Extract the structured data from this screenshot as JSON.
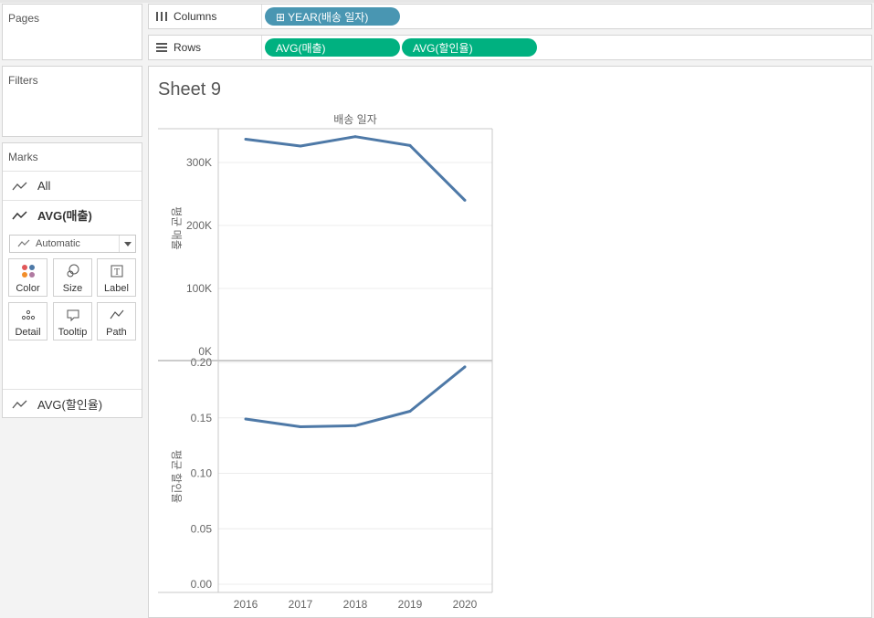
{
  "pages_pane": {
    "title": "Pages"
  },
  "filters_pane": {
    "title": "Filters"
  },
  "marks_pane": {
    "title": "Marks",
    "cards": [
      {
        "label": "All",
        "icon": "line-mark-icon",
        "bold": false
      },
      {
        "label": "AVG(매출)",
        "icon": "line-mark-icon",
        "bold": true
      },
      {
        "label": "AVG(할인율)",
        "icon": "line-mark-icon",
        "bold": false
      }
    ],
    "mark_type": "Automatic",
    "buttons": [
      {
        "label": "Color",
        "icon": "color-dots-icon"
      },
      {
        "label": "Size",
        "icon": "size-circles-icon"
      },
      {
        "label": "Label",
        "icon": "label-text-icon"
      },
      {
        "label": "Detail",
        "icon": "detail-dots-icon"
      },
      {
        "label": "Tooltip",
        "icon": "tooltip-bubble-icon"
      },
      {
        "label": "Path",
        "icon": "path-line-icon"
      }
    ]
  },
  "shelves": {
    "columns": {
      "label": "Columns",
      "pills": [
        "⊞ YEAR(배송 일자)"
      ]
    },
    "rows": {
      "label": "Rows",
      "pills": [
        "AVG(매출)",
        "AVG(할인율)"
      ]
    }
  },
  "sheet": {
    "title": "Sheet 9"
  },
  "colors": {
    "line": "#4e79a7",
    "pill_dimension": "#4996b2",
    "pill_measure": "#00b180"
  },
  "chart_data": [
    {
      "type": "line",
      "title": "배송 일자",
      "ylabel": "평균 매출",
      "x": [
        "2016",
        "2017",
        "2018",
        "2019",
        "2020"
      ],
      "values": [
        337000,
        326000,
        341000,
        327000,
        240000
      ],
      "ylim": [
        0,
        350000
      ],
      "yticks": [
        0,
        100000,
        200000,
        300000
      ],
      "ytick_labels": [
        "0K",
        "100K",
        "200K",
        "300K"
      ]
    },
    {
      "type": "line",
      "xlabel": "",
      "ylabel": "평균 할인율",
      "x": [
        "2016",
        "2017",
        "2018",
        "2019",
        "2020"
      ],
      "values": [
        0.149,
        0.142,
        0.143,
        0.156,
        0.196
      ],
      "ylim": [
        0,
        0.2
      ],
      "yticks": [
        0,
        0.05,
        0.1,
        0.15,
        0.2
      ],
      "ytick_labels": [
        "0.00",
        "0.05",
        "0.10",
        "0.15",
        "0.20"
      ]
    }
  ]
}
